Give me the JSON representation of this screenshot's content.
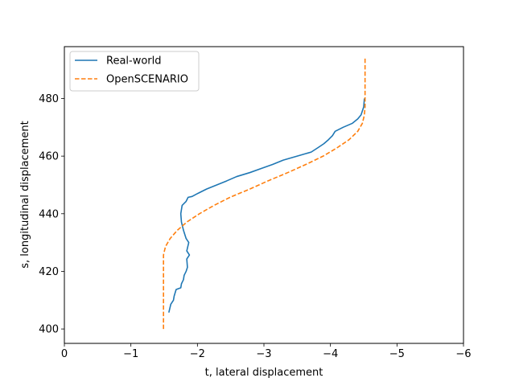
{
  "chart_data": {
    "type": "line",
    "xlabel": "t, lateral displacement",
    "ylabel": "s, longitudinal displacement",
    "xlim": [
      0,
      -6
    ],
    "ylim": [
      395,
      498
    ],
    "xticks": [
      0,
      -1,
      -2,
      -3,
      -4,
      -5,
      -6
    ],
    "xtick_labels": [
      "0",
      "−1",
      "−2",
      "−3",
      "−4",
      "−5",
      "−6"
    ],
    "yticks": [
      400,
      420,
      440,
      460,
      480
    ],
    "ytick_labels": [
      "400",
      "420",
      "440",
      "460",
      "480"
    ],
    "grid": false,
    "legend_position": "top-left",
    "series": [
      {
        "name": "Real-world",
        "color": "#1f77b4",
        "style": "solid",
        "points": [
          [
            -1.57,
            405.7
          ],
          [
            -1.6,
            408.6
          ],
          [
            -1.64,
            410.0
          ],
          [
            -1.65,
            411.4
          ],
          [
            -1.68,
            413.7
          ],
          [
            -1.75,
            414.3
          ],
          [
            -1.76,
            415.7
          ],
          [
            -1.79,
            417.1
          ],
          [
            -1.8,
            418.6
          ],
          [
            -1.83,
            420.0
          ],
          [
            -1.85,
            421.4
          ],
          [
            -1.84,
            424.3
          ],
          [
            -1.88,
            425.7
          ],
          [
            -1.84,
            427.1
          ],
          [
            -1.87,
            430.0
          ],
          [
            -1.83,
            431.4
          ],
          [
            -1.79,
            434.3
          ],
          [
            -1.76,
            437.1
          ],
          [
            -1.75,
            440.0
          ],
          [
            -1.77,
            442.9
          ],
          [
            -1.83,
            444.3
          ],
          [
            -1.86,
            445.7
          ],
          [
            -1.92,
            446.0
          ],
          [
            -2.01,
            447.1
          ],
          [
            -2.14,
            448.6
          ],
          [
            -2.29,
            450.0
          ],
          [
            -2.44,
            451.4
          ],
          [
            -2.59,
            452.9
          ],
          [
            -2.79,
            454.3
          ],
          [
            -2.96,
            455.7
          ],
          [
            -3.13,
            457.1
          ],
          [
            -3.29,
            458.6
          ],
          [
            -3.5,
            460.0
          ],
          [
            -3.71,
            461.4
          ],
          [
            -3.81,
            462.9
          ],
          [
            -3.9,
            464.3
          ],
          [
            -3.97,
            465.7
          ],
          [
            -4.03,
            467.1
          ],
          [
            -4.07,
            468.6
          ],
          [
            -4.19,
            470.0
          ],
          [
            -4.33,
            471.4
          ],
          [
            -4.41,
            472.9
          ],
          [
            -4.46,
            474.3
          ],
          [
            -4.48,
            475.7
          ],
          [
            -4.5,
            477.1
          ],
          [
            -4.51,
            480.0
          ]
        ]
      },
      {
        "name": "OpenSCENARIO",
        "color": "#ff7f0e",
        "style": "dashed",
        "points": [
          [
            -1.49,
            400.0
          ],
          [
            -1.49,
            410.0
          ],
          [
            -1.49,
            420.0
          ],
          [
            -1.49,
            425.7
          ],
          [
            -1.52,
            428.6
          ],
          [
            -1.59,
            431.4
          ],
          [
            -1.7,
            434.3
          ],
          [
            -1.84,
            437.1
          ],
          [
            -2.03,
            440.0
          ],
          [
            -2.25,
            442.9
          ],
          [
            -2.49,
            445.7
          ],
          [
            -2.79,
            448.6
          ],
          [
            -3.06,
            451.4
          ],
          [
            -3.36,
            454.3
          ],
          [
            -3.63,
            457.1
          ],
          [
            -3.89,
            460.0
          ],
          [
            -4.1,
            462.9
          ],
          [
            -4.28,
            465.7
          ],
          [
            -4.41,
            468.6
          ],
          [
            -4.48,
            471.4
          ],
          [
            -4.51,
            474.3
          ],
          [
            -4.52,
            477.1
          ],
          [
            -4.52,
            480.0
          ],
          [
            -4.52,
            485.7
          ],
          [
            -4.52,
            490.0
          ],
          [
            -4.52,
            494.3
          ]
        ]
      }
    ]
  }
}
